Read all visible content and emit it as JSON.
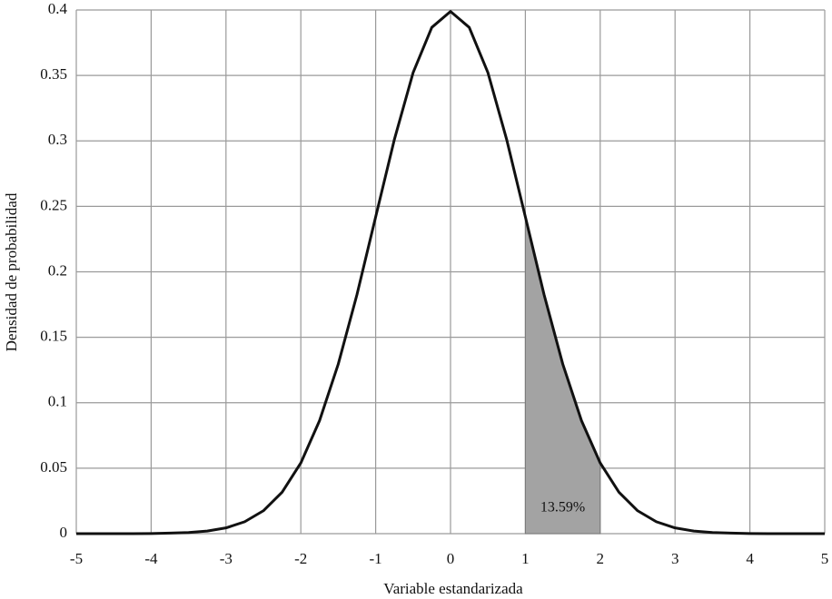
{
  "chart_data": {
    "type": "line",
    "x_label": "Variable estandarizada",
    "y_label": "Densidad de probabilidad",
    "x": [
      -5,
      -4.75,
      -4.5,
      -4.25,
      -4,
      -3.75,
      -3.5,
      -3.25,
      -3,
      -2.75,
      -2.5,
      -2.25,
      -2,
      -1.75,
      -1.5,
      -1.25,
      -1,
      -0.75,
      -0.5,
      -0.25,
      0,
      0.25,
      0.5,
      0.75,
      1,
      1.25,
      1.5,
      1.75,
      2,
      2.25,
      2.5,
      2.75,
      3,
      3.25,
      3.5,
      3.75,
      4,
      4.25,
      4.5,
      4.75,
      5
    ],
    "values": [
      0,
      0,
      0,
      0,
      0.0001,
      0.0004,
      0.0009,
      0.002,
      0.0044,
      0.0091,
      0.0175,
      0.0317,
      0.054,
      0.0863,
      0.1295,
      0.1826,
      0.242,
      0.3011,
      0.3521,
      0.3867,
      0.3989,
      0.3867,
      0.3521,
      0.3011,
      0.242,
      0.1826,
      0.1295,
      0.0863,
      0.054,
      0.0317,
      0.0175,
      0.0091,
      0.0044,
      0.002,
      0.0009,
      0.0004,
      0.0001,
      0,
      0,
      0,
      0
    ],
    "color": "#111111",
    "shaded_region": {
      "from": 1,
      "to": 2,
      "value": 13.59,
      "value_label": "13.59%",
      "color": "#a3a3a3"
    },
    "xlim": [
      -5,
      5
    ],
    "xticks": [
      -5,
      -4,
      -3,
      -2,
      -1,
      0,
      1,
      2,
      3,
      4,
      5
    ],
    "ylim": [
      0,
      0.4
    ],
    "yticks": [
      0,
      0.05,
      0.1,
      0.15,
      0.2,
      0.25,
      0.3,
      0.35,
      0.4
    ],
    "grid": true
  }
}
